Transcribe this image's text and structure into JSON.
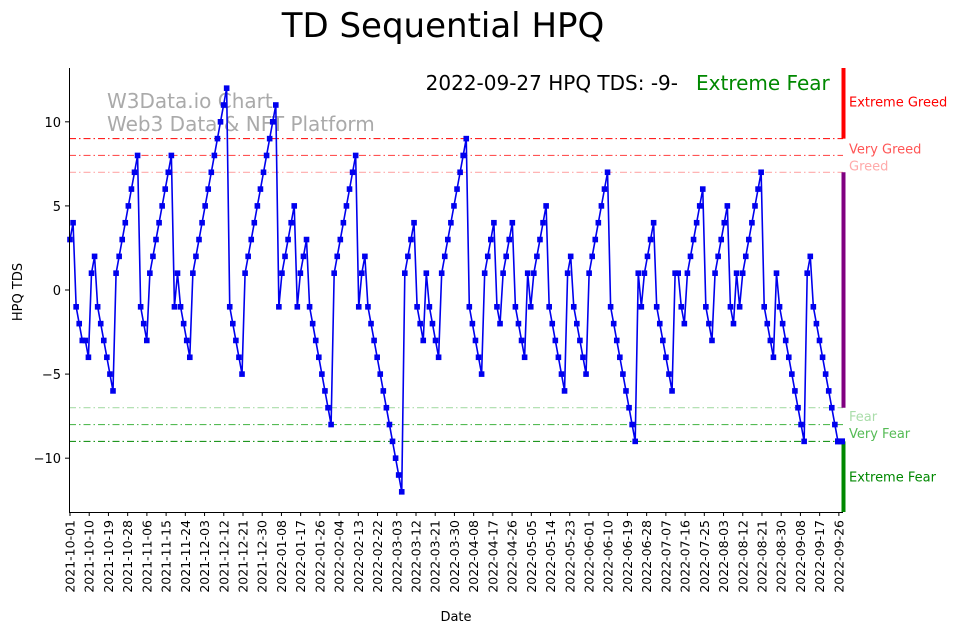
{
  "chart_data": {
    "type": "line",
    "title": "TD Sequential HPQ",
    "xlabel": "Date",
    "ylabel": "HPQ TDS",
    "ylim": [
      -13.2,
      13.2
    ],
    "yticks": [
      -10,
      -5,
      0,
      5,
      10
    ],
    "xticks": [
      "2021-10-01",
      "2021-10-10",
      "2021-10-19",
      "2021-10-28",
      "2021-11-06",
      "2021-11-15",
      "2021-11-24",
      "2021-12-03",
      "2021-12-12",
      "2021-12-21",
      "2021-12-30",
      "2022-01-08",
      "2022-01-17",
      "2022-01-26",
      "2022-02-04",
      "2022-02-13",
      "2022-02-22",
      "2022-03-03",
      "2022-03-12",
      "2022-03-21",
      "2022-03-30",
      "2022-04-08",
      "2022-04-17",
      "2022-04-26",
      "2022-05-05",
      "2022-05-14",
      "2022-05-23",
      "2022-06-01",
      "2022-06-10",
      "2022-06-19",
      "2022-06-28",
      "2022-07-07",
      "2022-07-16",
      "2022-07-25",
      "2022-08-03",
      "2022-08-12",
      "2022-08-21",
      "2022-08-30",
      "2022-09-08",
      "2022-09-17",
      "2022-09-26"
    ],
    "start_date": "2021-10-01",
    "end_date": "2022-09-27",
    "series": [
      {
        "name": "HPQ TDS",
        "color": "#0000ee",
        "points": [
          [
            0,
            3
          ],
          [
            1,
            4
          ],
          [
            2,
            -1
          ],
          [
            3,
            -2
          ],
          [
            4,
            -3
          ],
          [
            5,
            -3
          ],
          [
            6,
            -4
          ],
          [
            7,
            1
          ],
          [
            8,
            2
          ],
          [
            9,
            -1
          ],
          [
            10,
            -2
          ],
          [
            11,
            -3
          ],
          [
            12,
            -4
          ],
          [
            13,
            -5
          ],
          [
            14,
            -6
          ],
          [
            15,
            1
          ],
          [
            16,
            2
          ],
          [
            17,
            3
          ],
          [
            18,
            4
          ],
          [
            19,
            5
          ],
          [
            20,
            6
          ],
          [
            21,
            7
          ],
          [
            22,
            8
          ],
          [
            23,
            -1
          ],
          [
            24,
            -2
          ],
          [
            25,
            -3
          ],
          [
            26,
            1
          ],
          [
            27,
            2
          ],
          [
            28,
            3
          ],
          [
            29,
            4
          ],
          [
            30,
            5
          ],
          [
            31,
            6
          ],
          [
            32,
            7
          ],
          [
            33,
            8
          ],
          [
            34,
            -1
          ],
          [
            35,
            1
          ],
          [
            36,
            -1
          ],
          [
            37,
            -2
          ],
          [
            38,
            -3
          ],
          [
            39,
            -4
          ],
          [
            40,
            1
          ],
          [
            41,
            2
          ],
          [
            42,
            3
          ],
          [
            43,
            4
          ],
          [
            44,
            5
          ],
          [
            45,
            6
          ],
          [
            46,
            7
          ],
          [
            47,
            8
          ],
          [
            48,
            9
          ],
          [
            49,
            10
          ],
          [
            50,
            11
          ],
          [
            51,
            12
          ],
          [
            52,
            -1
          ],
          [
            53,
            -2
          ],
          [
            54,
            -3
          ],
          [
            55,
            -4
          ],
          [
            56,
            -5
          ],
          [
            57,
            1
          ],
          [
            58,
            2
          ],
          [
            59,
            3
          ],
          [
            60,
            4
          ],
          [
            61,
            5
          ],
          [
            62,
            6
          ],
          [
            63,
            7
          ],
          [
            64,
            8
          ],
          [
            65,
            9
          ],
          [
            66,
            10
          ],
          [
            67,
            11
          ],
          [
            68,
            -1
          ],
          [
            69,
            1
          ],
          [
            70,
            2
          ],
          [
            71,
            3
          ],
          [
            72,
            4
          ],
          [
            73,
            5
          ],
          [
            74,
            -1
          ],
          [
            75,
            1
          ],
          [
            76,
            2
          ],
          [
            77,
            3
          ],
          [
            78,
            -1
          ],
          [
            79,
            -2
          ],
          [
            80,
            -3
          ],
          [
            81,
            -4
          ],
          [
            82,
            -5
          ],
          [
            83,
            -6
          ],
          [
            84,
            -7
          ],
          [
            85,
            -8
          ],
          [
            86,
            1
          ],
          [
            87,
            2
          ],
          [
            88,
            3
          ],
          [
            89,
            4
          ],
          [
            90,
            5
          ],
          [
            91,
            6
          ],
          [
            92,
            7
          ],
          [
            93,
            8
          ],
          [
            94,
            -1
          ],
          [
            95,
            1
          ],
          [
            96,
            2
          ],
          [
            97,
            -1
          ],
          [
            98,
            -2
          ],
          [
            99,
            -3
          ],
          [
            100,
            -4
          ],
          [
            101,
            -5
          ],
          [
            102,
            -6
          ],
          [
            103,
            -7
          ],
          [
            104,
            -8
          ],
          [
            105,
            -9
          ],
          [
            106,
            -10
          ],
          [
            107,
            -11
          ],
          [
            108,
            -12
          ],
          [
            109,
            1
          ],
          [
            110,
            2
          ],
          [
            111,
            3
          ],
          [
            112,
            4
          ],
          [
            113,
            -1
          ],
          [
            114,
            -2
          ],
          [
            115,
            -3
          ],
          [
            116,
            1
          ],
          [
            117,
            -1
          ],
          [
            118,
            -2
          ],
          [
            119,
            -3
          ],
          [
            120,
            -4
          ],
          [
            121,
            1
          ],
          [
            122,
            2
          ],
          [
            123,
            3
          ],
          [
            124,
            4
          ],
          [
            125,
            5
          ],
          [
            126,
            6
          ],
          [
            127,
            7
          ],
          [
            128,
            8
          ],
          [
            129,
            9
          ],
          [
            130,
            -1
          ],
          [
            131,
            -2
          ],
          [
            132,
            -3
          ],
          [
            133,
            -4
          ],
          [
            134,
            -5
          ],
          [
            135,
            1
          ],
          [
            136,
            2
          ],
          [
            137,
            3
          ],
          [
            138,
            4
          ],
          [
            139,
            -1
          ],
          [
            140,
            -2
          ],
          [
            141,
            1
          ],
          [
            142,
            2
          ],
          [
            143,
            3
          ],
          [
            144,
            4
          ],
          [
            145,
            -1
          ],
          [
            146,
            -2
          ],
          [
            147,
            -3
          ],
          [
            148,
            -4
          ],
          [
            149,
            1
          ],
          [
            150,
            -1
          ],
          [
            151,
            1
          ],
          [
            152,
            2
          ],
          [
            153,
            3
          ],
          [
            154,
            4
          ],
          [
            155,
            5
          ],
          [
            156,
            -1
          ],
          [
            157,
            -2
          ],
          [
            158,
            -3
          ],
          [
            159,
            -4
          ],
          [
            160,
            -5
          ],
          [
            161,
            -6
          ],
          [
            162,
            1
          ],
          [
            163,
            2
          ],
          [
            164,
            -1
          ],
          [
            165,
            -2
          ],
          [
            166,
            -3
          ],
          [
            167,
            -4
          ],
          [
            168,
            -5
          ],
          [
            169,
            1
          ],
          [
            170,
            2
          ],
          [
            171,
            3
          ],
          [
            172,
            4
          ],
          [
            173,
            5
          ],
          [
            174,
            6
          ],
          [
            175,
            7
          ],
          [
            176,
            -1
          ],
          [
            177,
            -2
          ],
          [
            178,
            -3
          ],
          [
            179,
            -4
          ],
          [
            180,
            -5
          ],
          [
            181,
            -6
          ],
          [
            182,
            -7
          ],
          [
            183,
            -8
          ],
          [
            184,
            -9
          ],
          [
            185,
            1
          ],
          [
            186,
            -1
          ],
          [
            187,
            1
          ],
          [
            188,
            2
          ],
          [
            189,
            3
          ],
          [
            190,
            4
          ],
          [
            191,
            -1
          ],
          [
            192,
            -2
          ],
          [
            193,
            -3
          ],
          [
            194,
            -4
          ],
          [
            195,
            -5
          ],
          [
            196,
            -6
          ],
          [
            197,
            1
          ],
          [
            198,
            1
          ],
          [
            199,
            -1
          ],
          [
            200,
            -2
          ],
          [
            201,
            1
          ],
          [
            202,
            2
          ],
          [
            203,
            3
          ],
          [
            204,
            4
          ],
          [
            205,
            5
          ],
          [
            206,
            6
          ],
          [
            207,
            -1
          ],
          [
            208,
            -2
          ],
          [
            209,
            -3
          ],
          [
            210,
            1
          ],
          [
            211,
            2
          ],
          [
            212,
            3
          ],
          [
            213,
            4
          ],
          [
            214,
            5
          ],
          [
            215,
            -1
          ],
          [
            216,
            -2
          ],
          [
            217,
            1
          ],
          [
            218,
            -1
          ],
          [
            219,
            1
          ],
          [
            220,
            2
          ],
          [
            221,
            3
          ],
          [
            222,
            4
          ],
          [
            223,
            5
          ],
          [
            224,
            6
          ],
          [
            225,
            7
          ],
          [
            226,
            -1
          ],
          [
            227,
            -2
          ],
          [
            228,
            -3
          ],
          [
            229,
            -4
          ],
          [
            230,
            1
          ],
          [
            231,
            -1
          ],
          [
            232,
            -2
          ],
          [
            233,
            -3
          ],
          [
            234,
            -4
          ],
          [
            235,
            -5
          ],
          [
            236,
            -6
          ],
          [
            237,
            -7
          ],
          [
            238,
            -8
          ],
          [
            239,
            -9
          ],
          [
            240,
            1
          ],
          [
            241,
            2
          ],
          [
            242,
            -1
          ],
          [
            243,
            -2
          ],
          [
            244,
            -3
          ],
          [
            245,
            -4
          ],
          [
            246,
            -5
          ],
          [
            247,
            -6
          ],
          [
            248,
            -7
          ],
          [
            249,
            -8
          ],
          [
            250,
            -9
          ],
          [
            251,
            -9
          ]
        ],
        "x_max": 251
      }
    ],
    "reference_lines": [
      {
        "value": 9,
        "color": "#ff0000",
        "style": "dash-dot"
      },
      {
        "value": 8,
        "color": "#ff5555",
        "style": "dash-dot"
      },
      {
        "value": 7,
        "color": "#ffaaaa",
        "style": "dash-dot"
      },
      {
        "value": -7,
        "color": "#aaddaa",
        "style": "dash-dot"
      },
      {
        "value": -8,
        "color": "#55bb55",
        "style": "dash-dot"
      },
      {
        "value": -9,
        "color": "#008800",
        "style": "dash-dot"
      }
    ],
    "zone_labels": [
      {
        "text": "Extreme Greed",
        "value": 11.2,
        "color": "#ff0000"
      },
      {
        "text": "Very Greed",
        "value": 8.4,
        "color": "#ff5555"
      },
      {
        "text": "Greed",
        "value": 7.4,
        "color": "#ffaaaa"
      },
      {
        "text": "Fear",
        "value": -7.5,
        "color": "#aaddaa"
      },
      {
        "text": "Very Fear",
        "value": -8.5,
        "color": "#55bb55"
      },
      {
        "text": "Extreme Fear",
        "value": -11.1,
        "color": "#008800"
      }
    ],
    "side_bar": [
      {
        "from": 9,
        "to": 13.2,
        "color": "#ff0000"
      },
      {
        "from": -7,
        "to": 7,
        "color": "#800080"
      },
      {
        "from": -13.2,
        "to": -9,
        "color": "#008800"
      }
    ],
    "current_marker": {
      "value": -9,
      "color": "#0000ee"
    }
  },
  "annotation": {
    "text": "2022-09-27 HPQ TDS: -9-",
    "status": "Extreme Fear",
    "status_color": "#008800"
  },
  "watermark": {
    "line1": "W3Data.io Chart",
    "line2": "Web3 Data & NFT Platform"
  }
}
